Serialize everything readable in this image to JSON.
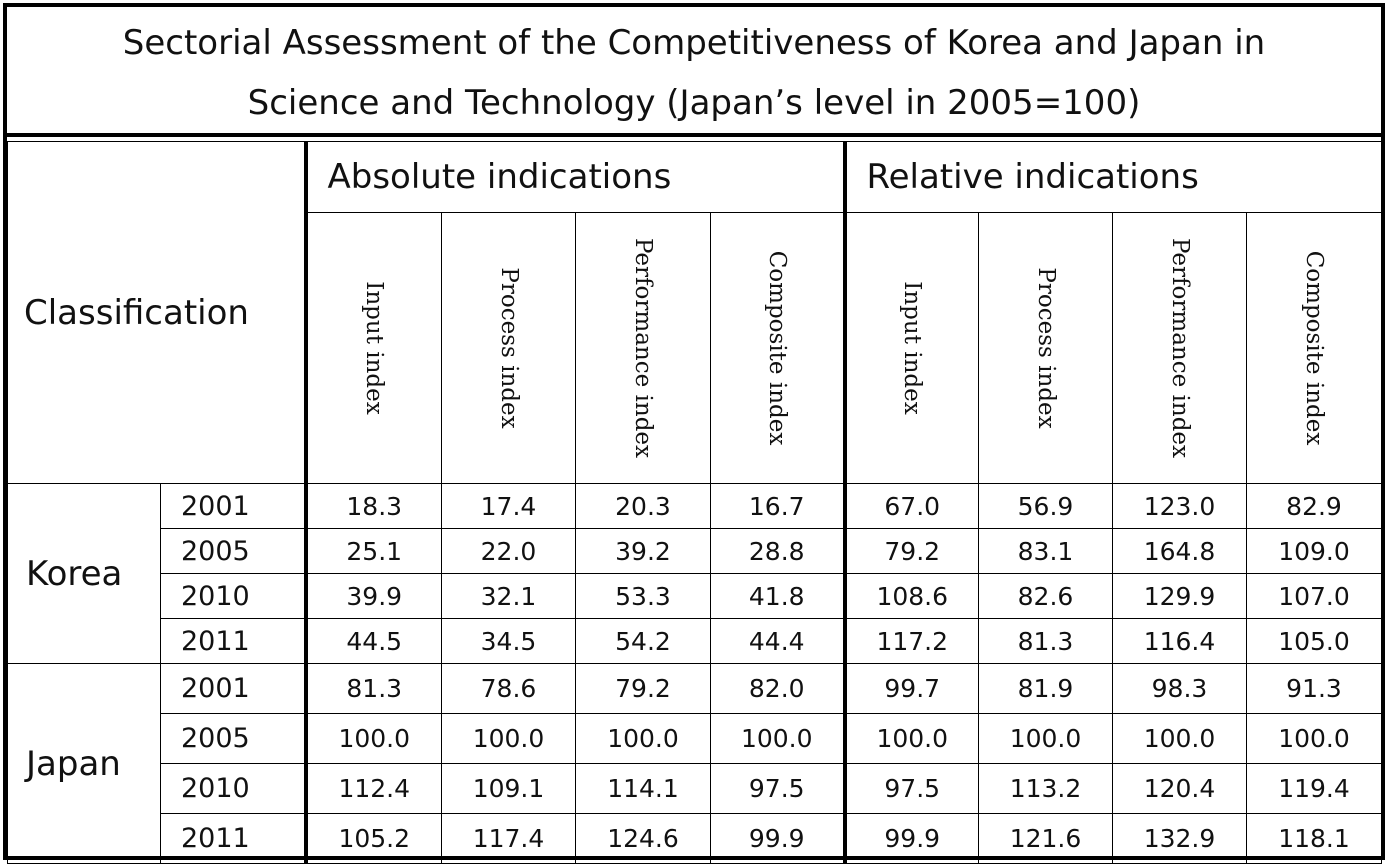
{
  "title": {
    "line1": "Sectorial Assessment of the Competitiveness of Korea and Japan in",
    "line2": "Science and Technology  (Japan’s level in 2005=100)"
  },
  "header": {
    "classification": "Classification",
    "absolute": "Absolute indications",
    "relative": "Relative indications",
    "indices": [
      "Input index",
      "Process index",
      "Performance index",
      "Composite index"
    ]
  },
  "rows": [
    {
      "country": "Korea",
      "year": "2001",
      "values": [
        "18.3",
        "17.4",
        "20.3",
        "16.7",
        "67.0",
        "56.9",
        "123.0",
        "82.9"
      ]
    },
    {
      "country": "Korea",
      "year": "2005",
      "values": [
        "25.1",
        "22.0",
        "39.2",
        "28.8",
        "79.2",
        "83.1",
        "164.8",
        "109.0"
      ]
    },
    {
      "country": "Korea",
      "year": "2010",
      "values": [
        "39.9",
        "32.1",
        "53.3",
        "41.8",
        "108.6",
        "82.6",
        "129.9",
        "107.0"
      ]
    },
    {
      "country": "Korea",
      "year": "2011",
      "values": [
        "44.5",
        "34.5",
        "54.2",
        "44.4",
        "117.2",
        "81.3",
        "116.4",
        "105.0"
      ]
    },
    {
      "country": "Japan",
      "year": "2001",
      "values": [
        "81.3",
        "78.6",
        "79.2",
        "82.0",
        "99.7",
        "81.9",
        "98.3",
        "91.3"
      ]
    },
    {
      "country": "Japan",
      "year": "2005",
      "values": [
        "100.0",
        "100.0",
        "100.0",
        "100.0",
        "100.0",
        "100.0",
        "100.0",
        "100.0"
      ]
    },
    {
      "country": "Japan",
      "year": "2010",
      "values": [
        "112.4",
        "109.1",
        "114.1",
        "97.5",
        "97.5",
        "113.2",
        "120.4",
        "119.4"
      ]
    },
    {
      "country": "Japan",
      "year": "2011",
      "values": [
        "105.2",
        "117.4",
        "124.6",
        "99.9",
        "99.9",
        "121.6",
        "132.9",
        "118.1"
      ]
    }
  ]
}
